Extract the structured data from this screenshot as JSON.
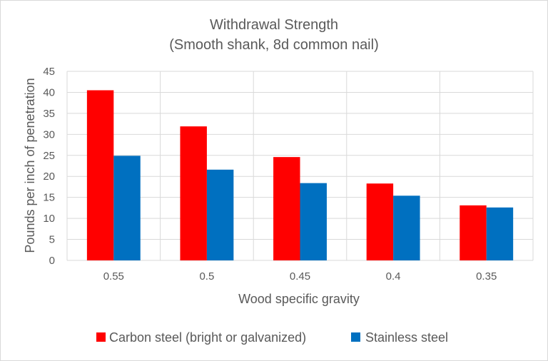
{
  "chart_data": {
    "type": "bar",
    "title": "Withdrawal Strength",
    "subtitle": "(Smooth shank, 8d common nail)",
    "xlabel": "Wood specific gravity",
    "ylabel": "Pounds per inch of penetration",
    "categories": [
      "0.55",
      "0.5",
      "0.45",
      "0.4",
      "0.35"
    ],
    "series": [
      {
        "name": "Carbon steel (bright or galvanized)",
        "color": "#ff0000",
        "values": [
          40.5,
          31.9,
          24.6,
          18.3,
          13.1
        ]
      },
      {
        "name": "Stainless steel",
        "color": "#0070c0",
        "values": [
          24.9,
          21.6,
          18.4,
          15.4,
          12.6
        ]
      }
    ],
    "ylim": [
      0,
      45
    ],
    "yticks": [
      "0",
      "5",
      "10",
      "15",
      "20",
      "25",
      "30",
      "35",
      "40",
      "45"
    ],
    "grid": true,
    "legend_position": "bottom"
  }
}
